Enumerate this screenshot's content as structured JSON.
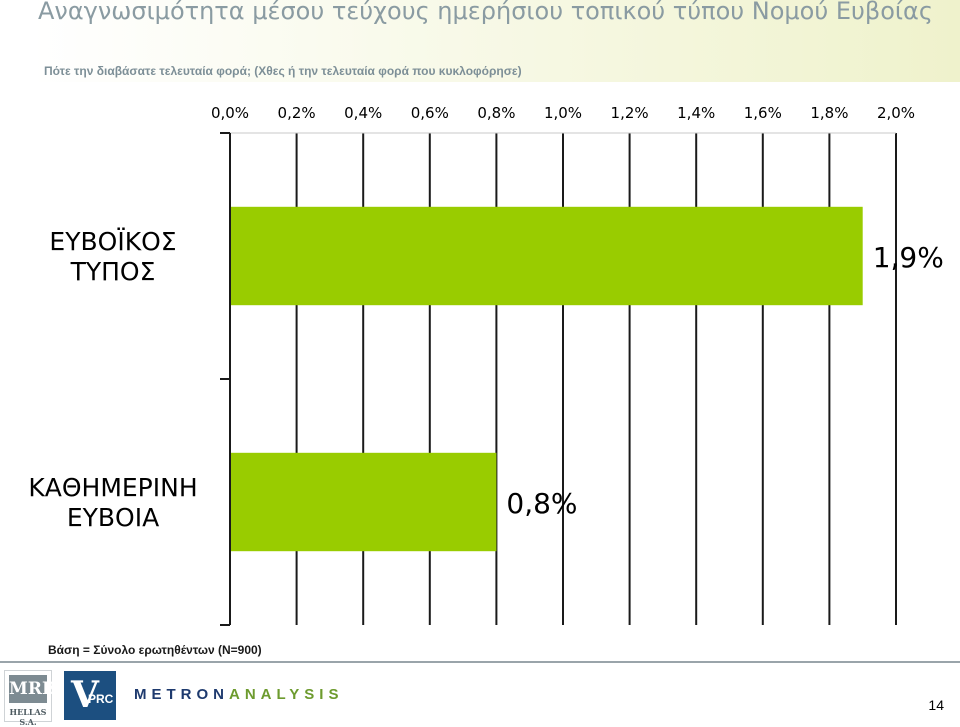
{
  "title": "Αναγνωσιμότητα μέσου τεύχους ημερήσιου τοπικού τύπου Νομού Ευβοίας",
  "subtitle": "Πότε την διαβάσατε τελευταία φορά; (Χθες ή την τελευταία φορά που κυκλοφόρησε)",
  "chart_data": {
    "type": "bar",
    "orientation": "horizontal",
    "title": "",
    "xlabel": "",
    "ylabel": "",
    "xlim": [
      0,
      2.0
    ],
    "x_tick_labels": [
      "0,0%",
      "0,2%",
      "0,4%",
      "0,6%",
      "0,8%",
      "1,0%",
      "1,2%",
      "1,4%",
      "1,6%",
      "1,8%",
      "2,0%"
    ],
    "x_tick_values": [
      0,
      0.2,
      0.4,
      0.6,
      0.8,
      1.0,
      1.2,
      1.4,
      1.6,
      1.8,
      2.0
    ],
    "x_axis_position": "top",
    "grid": true,
    "legend": "none",
    "bar_color": "#99cc00",
    "categories": [
      {
        "lines": [
          "ΕΥΒΟΪΚΟΣ",
          "ΤΥΠΟΣ"
        ]
      },
      {
        "lines": [
          "ΚΑΘΗΜΕΡΙΝΗ",
          "ΕΥΒΟΙΑ"
        ]
      }
    ],
    "values": [
      1.9,
      0.8
    ],
    "data_labels": [
      "1,9%",
      "0,8%"
    ]
  },
  "footnote": "Βάση = Σύνολο ερωτηθέντων (Ν=900)",
  "logos": {
    "mrb_main": "MRB",
    "mrb_sub": "HELLAS S.A.",
    "vprc_v": "V",
    "vprc_rest": "PRC",
    "metron_a": "METRON",
    "metron_b": "ANALYSIS"
  },
  "page_number": "14"
}
